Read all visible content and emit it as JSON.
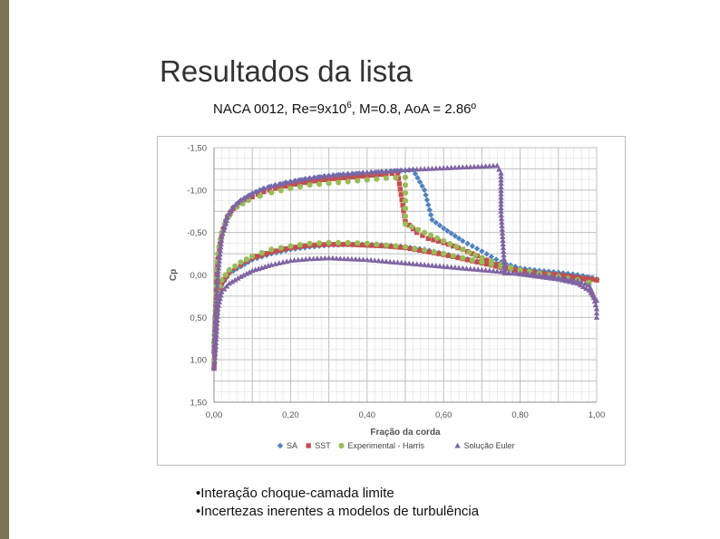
{
  "slide": {
    "title": "Resultados da lista",
    "subtitle_parts": [
      "NACA 0012, Re=9x10",
      "6",
      ", M=0.8, AoA = 2.86º"
    ],
    "bullets": [
      "•Interação choque-camada limite",
      "•Incertezas inerentes a modelos de turbulência"
    ],
    "accent_color": "#7a7455"
  },
  "chart_data": {
    "type": "scatter",
    "xlabel": "Fração da corda",
    "ylabel": "Cp",
    "xlim": [
      0,
      1
    ],
    "ylim": [
      -1.5,
      1.5
    ],
    "y_inverted": true,
    "grid": true,
    "legend_position": "bottom",
    "x_ticks": [
      0,
      0.1,
      0.2,
      0.3,
      0.4,
      0.5,
      0.6,
      0.7,
      0.8,
      0.9,
      1.0
    ],
    "x_tick_labels": [
      "0,00",
      "",
      "0,20",
      "",
      "0,40",
      "",
      "0,60",
      "",
      "0,80",
      "",
      "1,00"
    ],
    "y_ticks": [
      -1.5,
      -1.25,
      -1.0,
      -0.75,
      -0.5,
      -0.25,
      0,
      0.25,
      0.5,
      0.75,
      1.0,
      1.25,
      1.5
    ],
    "y_tick_labels": [
      "-1,50",
      "",
      "-1,00",
      "",
      "-0,50",
      "",
      "0,00",
      "",
      "0,50",
      "",
      "1,00",
      "",
      "1,50"
    ],
    "series": [
      {
        "name": "SA",
        "marker": "diamond",
        "color": "#4f81bd",
        "upper": [
          [
            0.0,
            0.9
          ],
          [
            0.005,
            0.3
          ],
          [
            0.01,
            -0.2
          ],
          [
            0.02,
            -0.5
          ],
          [
            0.035,
            -0.7
          ],
          [
            0.05,
            -0.8
          ],
          [
            0.07,
            -0.88
          ],
          [
            0.1,
            -0.96
          ],
          [
            0.13,
            -1.02
          ],
          [
            0.16,
            -1.06
          ],
          [
            0.2,
            -1.1
          ],
          [
            0.25,
            -1.14
          ],
          [
            0.3,
            -1.17
          ],
          [
            0.35,
            -1.19
          ],
          [
            0.4,
            -1.2
          ],
          [
            0.45,
            -1.22
          ],
          [
            0.5,
            -1.23
          ],
          [
            0.52,
            -1.24
          ],
          [
            0.55,
            -1.0
          ],
          [
            0.57,
            -0.65
          ],
          [
            0.6,
            -0.55
          ],
          [
            0.65,
            -0.4
          ],
          [
            0.7,
            -0.28
          ],
          [
            0.75,
            -0.15
          ],
          [
            0.8,
            -0.08
          ],
          [
            0.85,
            -0.05
          ],
          [
            0.9,
            -0.03
          ],
          [
            0.95,
            0.0
          ],
          [
            0.98,
            0.03
          ],
          [
            1.0,
            0.05
          ]
        ],
        "lower": [
          [
            0.0,
            1.1
          ],
          [
            0.005,
            0.6
          ],
          [
            0.01,
            0.3
          ],
          [
            0.02,
            0.12
          ],
          [
            0.04,
            -0.02
          ],
          [
            0.07,
            -0.1
          ],
          [
            0.1,
            -0.18
          ],
          [
            0.15,
            -0.25
          ],
          [
            0.2,
            -0.3
          ],
          [
            0.25,
            -0.33
          ],
          [
            0.3,
            -0.35
          ],
          [
            0.35,
            -0.36
          ],
          [
            0.4,
            -0.36
          ],
          [
            0.45,
            -0.35
          ],
          [
            0.5,
            -0.33
          ],
          [
            0.55,
            -0.3
          ],
          [
            0.6,
            -0.25
          ],
          [
            0.65,
            -0.2
          ],
          [
            0.7,
            -0.15
          ],
          [
            0.75,
            -0.1
          ],
          [
            0.8,
            -0.06
          ],
          [
            0.85,
            -0.04
          ],
          [
            0.9,
            -0.02
          ],
          [
            0.95,
            0.0
          ],
          [
            1.0,
            0.05
          ]
        ]
      },
      {
        "name": "SST",
        "marker": "square",
        "color": "#c0504d",
        "upper": [
          [
            0.0,
            0.9
          ],
          [
            0.005,
            0.3
          ],
          [
            0.01,
            -0.18
          ],
          [
            0.02,
            -0.48
          ],
          [
            0.035,
            -0.68
          ],
          [
            0.05,
            -0.78
          ],
          [
            0.07,
            -0.85
          ],
          [
            0.1,
            -0.92
          ],
          [
            0.13,
            -0.98
          ],
          [
            0.16,
            -1.02
          ],
          [
            0.2,
            -1.06
          ],
          [
            0.25,
            -1.1
          ],
          [
            0.3,
            -1.13
          ],
          [
            0.35,
            -1.15
          ],
          [
            0.4,
            -1.17
          ],
          [
            0.45,
            -1.19
          ],
          [
            0.48,
            -1.2
          ],
          [
            0.5,
            -0.63
          ],
          [
            0.53,
            -0.5
          ],
          [
            0.56,
            -0.43
          ],
          [
            0.6,
            -0.38
          ],
          [
            0.65,
            -0.3
          ],
          [
            0.7,
            -0.2
          ],
          [
            0.75,
            -0.1
          ],
          [
            0.8,
            -0.04
          ],
          [
            0.85,
            -0.01
          ],
          [
            0.9,
            0.02
          ],
          [
            0.95,
            0.04
          ],
          [
            0.98,
            0.06
          ],
          [
            1.0,
            0.06
          ]
        ],
        "lower": [
          [
            0.0,
            1.1
          ],
          [
            0.005,
            0.6
          ],
          [
            0.01,
            0.3
          ],
          [
            0.02,
            0.1
          ],
          [
            0.04,
            -0.04
          ],
          [
            0.07,
            -0.12
          ],
          [
            0.1,
            -0.2
          ],
          [
            0.15,
            -0.27
          ],
          [
            0.2,
            -0.32
          ],
          [
            0.25,
            -0.35
          ],
          [
            0.3,
            -0.36
          ],
          [
            0.35,
            -0.36
          ],
          [
            0.4,
            -0.35
          ],
          [
            0.45,
            -0.34
          ],
          [
            0.5,
            -0.32
          ],
          [
            0.55,
            -0.28
          ],
          [
            0.6,
            -0.24
          ],
          [
            0.65,
            -0.19
          ],
          [
            0.7,
            -0.14
          ],
          [
            0.75,
            -0.09
          ],
          [
            0.8,
            -0.05
          ],
          [
            0.85,
            -0.02
          ],
          [
            0.9,
            0.0
          ],
          [
            0.95,
            0.03
          ],
          [
            1.0,
            0.06
          ]
        ]
      },
      {
        "name": "Experimental - Harris",
        "marker": "circle",
        "color": "#9bbb59",
        "upper": [
          [
            0.0,
            0.8
          ],
          [
            0.01,
            -0.25
          ],
          [
            0.02,
            -0.5
          ],
          [
            0.04,
            -0.7
          ],
          [
            0.06,
            -0.8
          ],
          [
            0.09,
            -0.88
          ],
          [
            0.12,
            -0.93
          ],
          [
            0.15,
            -0.97
          ],
          [
            0.2,
            -1.02
          ],
          [
            0.25,
            -1.06
          ],
          [
            0.3,
            -1.08
          ],
          [
            0.35,
            -1.1
          ],
          [
            0.4,
            -1.12
          ],
          [
            0.45,
            -1.14
          ],
          [
            0.5,
            -1.15
          ],
          [
            0.5,
            -0.6
          ],
          [
            0.55,
            -0.5
          ],
          [
            0.6,
            -0.4
          ],
          [
            0.65,
            -0.3
          ],
          [
            0.7,
            -0.2
          ],
          [
            0.75,
            -0.12
          ],
          [
            0.8,
            -0.06
          ],
          [
            0.85,
            -0.02
          ],
          [
            0.9,
            0.02
          ],
          [
            0.95,
            0.06
          ],
          [
            0.98,
            0.1
          ]
        ],
        "lower": [
          [
            0.0,
            1.0
          ],
          [
            0.01,
            0.2
          ],
          [
            0.02,
            0.06
          ],
          [
            0.04,
            -0.06
          ],
          [
            0.07,
            -0.15
          ],
          [
            0.1,
            -0.22
          ],
          [
            0.15,
            -0.3
          ],
          [
            0.2,
            -0.34
          ],
          [
            0.25,
            -0.37
          ],
          [
            0.3,
            -0.38
          ],
          [
            0.35,
            -0.38
          ],
          [
            0.4,
            -0.37
          ],
          [
            0.45,
            -0.35
          ],
          [
            0.5,
            -0.33
          ],
          [
            0.55,
            -0.29
          ],
          [
            0.6,
            -0.25
          ],
          [
            0.65,
            -0.2
          ],
          [
            0.7,
            -0.15
          ],
          [
            0.75,
            -0.1
          ],
          [
            0.8,
            -0.05
          ],
          [
            0.85,
            -0.01
          ],
          [
            0.9,
            0.03
          ],
          [
            0.95,
            0.07
          ],
          [
            0.98,
            0.09
          ]
        ]
      },
      {
        "name": "Solução Euler",
        "marker": "triangle",
        "color": "#8064a2",
        "upper": [
          [
            0.0,
            0.9
          ],
          [
            0.005,
            0.4
          ],
          [
            0.01,
            0.0
          ],
          [
            0.02,
            -0.45
          ],
          [
            0.035,
            -0.68
          ],
          [
            0.05,
            -0.8
          ],
          [
            0.07,
            -0.88
          ],
          [
            0.1,
            -0.96
          ],
          [
            0.13,
            -1.02
          ],
          [
            0.16,
            -1.06
          ],
          [
            0.2,
            -1.1
          ],
          [
            0.25,
            -1.14
          ],
          [
            0.3,
            -1.17
          ],
          [
            0.35,
            -1.19
          ],
          [
            0.4,
            -1.21
          ],
          [
            0.45,
            -1.22
          ],
          [
            0.5,
            -1.24
          ],
          [
            0.55,
            -1.25
          ],
          [
            0.6,
            -1.26
          ],
          [
            0.65,
            -1.27
          ],
          [
            0.7,
            -1.28
          ],
          [
            0.74,
            -1.29
          ],
          [
            0.75,
            -1.2
          ],
          [
            0.75,
            -0.75
          ],
          [
            0.76,
            -0.02
          ],
          [
            0.8,
            -0.02
          ],
          [
            0.85,
            0.0
          ],
          [
            0.9,
            0.03
          ],
          [
            0.95,
            0.07
          ],
          [
            0.98,
            0.12
          ],
          [
            0.99,
            0.22
          ],
          [
            1.0,
            0.4
          ],
          [
            1.0,
            0.5
          ]
        ],
        "lower": [
          [
            0.0,
            1.1
          ],
          [
            0.005,
            0.8
          ],
          [
            0.01,
            0.4
          ],
          [
            0.02,
            0.2
          ],
          [
            0.04,
            0.1
          ],
          [
            0.07,
            0.02
          ],
          [
            0.1,
            -0.05
          ],
          [
            0.15,
            -0.12
          ],
          [
            0.2,
            -0.17
          ],
          [
            0.25,
            -0.19
          ],
          [
            0.3,
            -0.2
          ],
          [
            0.35,
            -0.19
          ],
          [
            0.4,
            -0.18
          ],
          [
            0.45,
            -0.16
          ],
          [
            0.5,
            -0.14
          ],
          [
            0.55,
            -0.12
          ],
          [
            0.6,
            -0.1
          ],
          [
            0.65,
            -0.08
          ],
          [
            0.7,
            -0.06
          ],
          [
            0.75,
            -0.04
          ],
          [
            0.8,
            -0.01
          ],
          [
            0.85,
            0.02
          ],
          [
            0.9,
            0.05
          ],
          [
            0.95,
            0.1
          ],
          [
            0.98,
            0.18
          ],
          [
            1.0,
            0.3
          ]
        ]
      }
    ]
  }
}
